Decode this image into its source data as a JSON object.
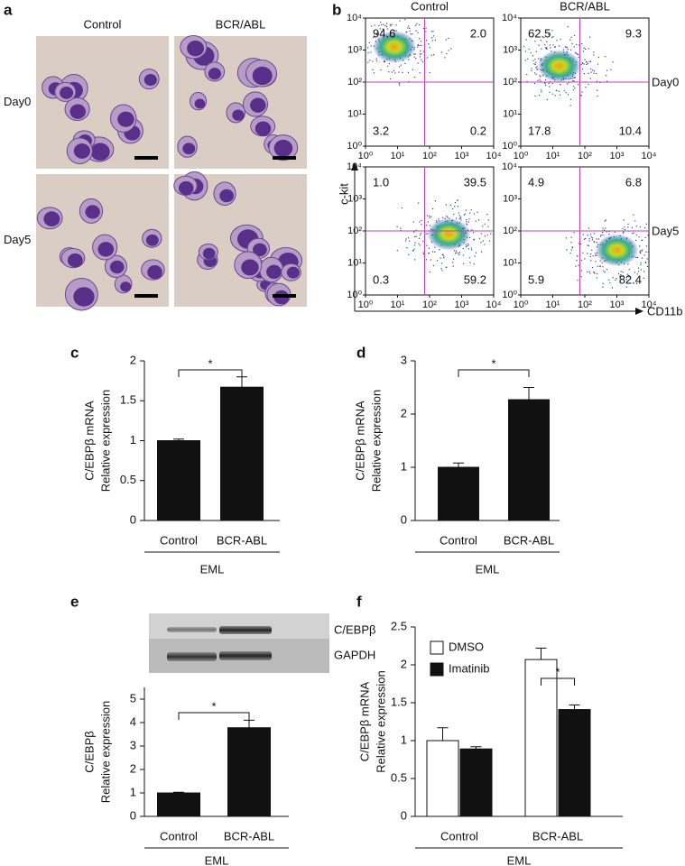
{
  "panels": {
    "a": {
      "label": "a",
      "columns": [
        "Control",
        "BCR/ABL"
      ],
      "rows": [
        "Day0",
        "Day5"
      ]
    },
    "b": {
      "label": "b",
      "columns": [
        "Control",
        "BCR/ABL"
      ],
      "rows": [
        "Day0",
        "Day5"
      ],
      "y_label": "c-kit",
      "x_label": "CD11b",
      "log": true,
      "xlim": [
        1,
        10000
      ],
      "ylim": [
        1,
        10000
      ],
      "gate": {
        "x": 70,
        "y": 100
      },
      "xticks": [
        {
          "value": 1,
          "label": "10⁰"
        },
        {
          "value": 10,
          "label": "10¹"
        },
        {
          "value": 100,
          "label": "10²"
        },
        {
          "value": 1000,
          "label": "10³"
        },
        {
          "value": 10000,
          "label": "10⁴"
        }
      ],
      "yticks": [
        {
          "value": 1,
          "label": "10⁰"
        },
        {
          "value": 10,
          "label": "10¹"
        },
        {
          "value": 100,
          "label": "10²"
        },
        {
          "value": 1000,
          "label": "10³"
        },
        {
          "value": 10000,
          "label": "10⁴"
        }
      ],
      "quadrants": [
        [
          [
            "94.6",
            "2.0",
            "3.2",
            "0.2"
          ],
          [
            "62.5",
            "9.3",
            "17.8",
            "10.4"
          ]
        ],
        [
          [
            "1.0",
            "39.5",
            "0.3",
            "59.2"
          ],
          [
            "4.9",
            "6.8",
            "5.9",
            "82.4"
          ]
        ]
      ]
    }
  },
  "chart_data": [
    {
      "type": "bar",
      "label": "c",
      "y_label": [
        "C/EBPβ mRNA",
        "Relative expression"
      ],
      "group_label": "EML",
      "significance": "*",
      "categories": [
        "Control",
        "BCR-ABL"
      ],
      "values": [
        1.0,
        1.67
      ],
      "errors": [
        0.02,
        0.13
      ],
      "color": "#111111",
      "ylim": [
        0,
        2
      ],
      "yticks": [
        0,
        0.5,
        1,
        1.5,
        2
      ]
    },
    {
      "type": "bar",
      "label": "d",
      "y_label": [
        "C/EBPβ mRNA",
        "Relative expression"
      ],
      "group_label": "EML",
      "significance": "*",
      "categories": [
        "Control",
        "BCR-ABL"
      ],
      "values": [
        1.0,
        2.27
      ],
      "errors": [
        0.08,
        0.23
      ],
      "color": "#111111",
      "ylim": [
        0,
        3
      ],
      "yticks": [
        0,
        1,
        2,
        3
      ]
    },
    {
      "type": "bar",
      "label": "e",
      "y_label": [
        "C/EBPβ",
        "Relative expression"
      ],
      "group_label": "EML",
      "significance": "*",
      "blot_labels": [
        "C/EBPβ",
        "GAPDH"
      ],
      "categories": [
        "Control",
        "BCR-ABL"
      ],
      "values": [
        1.0,
        3.78
      ],
      "errors": [
        0.03,
        0.32
      ],
      "color": "#111111",
      "ylim": [
        0,
        5.5
      ],
      "yticks": [
        0,
        1,
        2,
        3,
        4,
        5
      ]
    },
    {
      "type": "grouped_bar",
      "label": "f",
      "y_label": [
        "C/EBPβ mRNA",
        "Relative expression"
      ],
      "group_label": "EML",
      "significance": "*",
      "categories": [
        "Control",
        "BCR-ABL"
      ],
      "series": [
        {
          "name": "DMSO",
          "color": "#ffffff",
          "values": [
            1.0,
            2.07
          ],
          "errors": [
            0.17,
            0.15
          ]
        },
        {
          "name": "Imatinib",
          "color": "#111111",
          "values": [
            0.89,
            1.41
          ],
          "errors": [
            0.03,
            0.06
          ]
        }
      ],
      "ylim": [
        0,
        2.5
      ],
      "yticks": [
        0,
        0.5,
        1,
        1.5,
        2,
        2.5
      ]
    }
  ]
}
